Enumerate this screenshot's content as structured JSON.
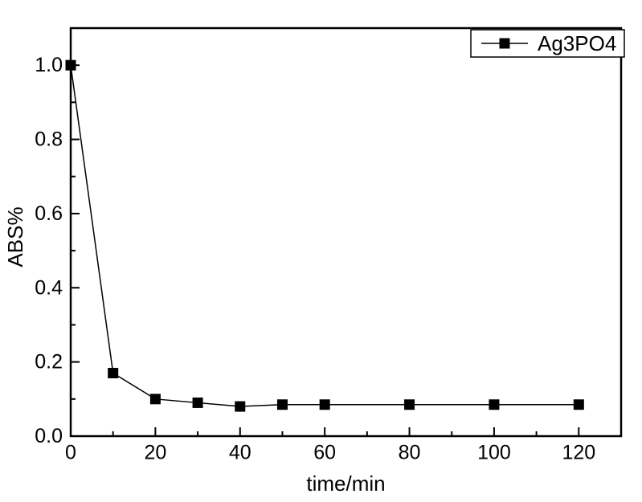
{
  "figure": {
    "background_color": "#ffffff",
    "foreground_color": "#000000"
  },
  "chart_data": {
    "type": "line",
    "title": "",
    "xlabel": "time/min",
    "ylabel": "ABS%",
    "xlim": [
      0,
      130
    ],
    "ylim": [
      0,
      1.1
    ],
    "grid": false,
    "axis_color": "#000000",
    "x_ticks": {
      "major": [
        0,
        20,
        40,
        60,
        80,
        100,
        120
      ],
      "major_labels": [
        "0",
        "20",
        "40",
        "60",
        "80",
        "100",
        "120"
      ],
      "minor": [
        10,
        30,
        50,
        70,
        90,
        110
      ]
    },
    "y_ticks": {
      "major": [
        0,
        0.2,
        0.4,
        0.6,
        0.8,
        1.0
      ],
      "major_labels": [
        "0.0",
        "0.2",
        "0.4",
        "0.6",
        "0.8",
        "1.0"
      ],
      "minor": [
        0.1,
        0.3,
        0.5,
        0.7,
        0.9
      ]
    },
    "legend": {
      "position": "top-right",
      "entries": [
        {
          "label": "Ag3PO4",
          "marker": "filled-square",
          "line": true,
          "color": "#000000"
        }
      ]
    },
    "series": [
      {
        "name": "Ag3PO4",
        "color": "#000000",
        "marker": "square",
        "marker_size": 13,
        "line_width": 1.5,
        "x": [
          0,
          10,
          20,
          30,
          40,
          50,
          60,
          80,
          100,
          120
        ],
        "y": [
          1.0,
          0.17,
          0.1,
          0.09,
          0.08,
          0.085,
          0.085,
          0.085,
          0.085,
          0.085
        ]
      }
    ]
  }
}
